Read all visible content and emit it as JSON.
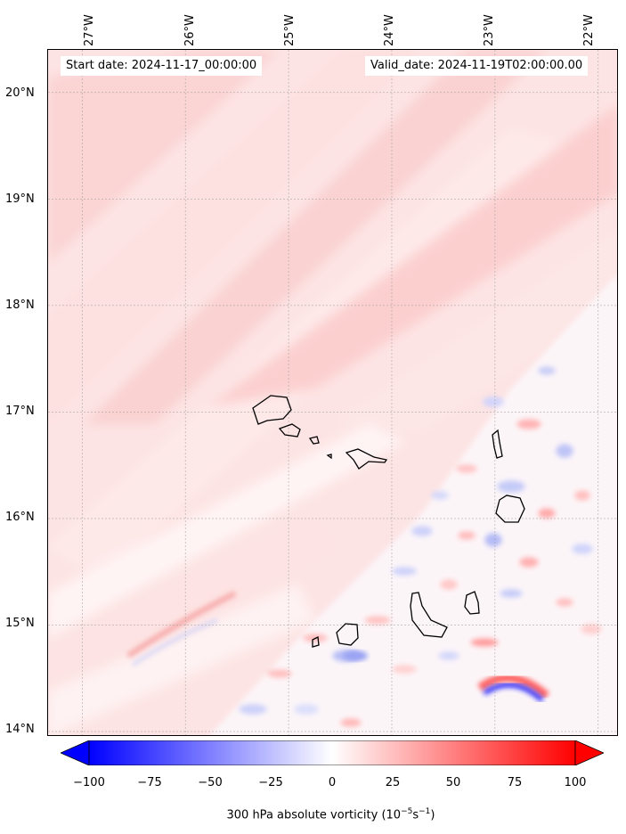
{
  "map": {
    "start_date_text": "Start date: 2024-11-17_00:00:00",
    "valid_date_text": "Valid_date: 2024-11-19T02:00:00.00",
    "lon_labels": [
      "27°W",
      "26°W",
      "25°W",
      "24°W",
      "23°W",
      "22°W"
    ],
    "lat_labels": [
      "20°N",
      "19°N",
      "18°N",
      "17°N",
      "16°N",
      "15°N",
      "14°N"
    ],
    "lon_values": [
      -27,
      -26,
      -25,
      -24,
      -23,
      -22
    ],
    "lat_values": [
      20,
      19,
      18,
      17,
      16,
      15,
      14
    ],
    "extent": {
      "lon_min": -27.33,
      "lon_max": -21.8,
      "lat_min": 13.95,
      "lat_max": 20.4
    },
    "islands": [
      "Santo Antão",
      "São Vicente",
      "Santa Luzia",
      "São Nicolau",
      "Sal",
      "Boa Vista",
      "Maio",
      "Santiago",
      "Fogo",
      "Brava"
    ],
    "gridlines": true
  },
  "colorbar": {
    "ticks": [
      "−100",
      "−75",
      "−50",
      "−25",
      "0",
      "25",
      "50",
      "75",
      "100"
    ],
    "tick_values": [
      -100,
      -75,
      -50,
      -25,
      0,
      25,
      50,
      75,
      100
    ],
    "range": [
      -100,
      100
    ],
    "colormap": "bwr",
    "extend": "both",
    "label_prefix": "300 hPa absolute vorticity (10",
    "label_exp1": "−5",
    "label_mid": "s",
    "label_exp2": "−1",
    "label_suffix": ")"
  },
  "colors": {
    "negative": "#0000ff",
    "positive": "#ff0000",
    "neutral": "#ffffff"
  }
}
